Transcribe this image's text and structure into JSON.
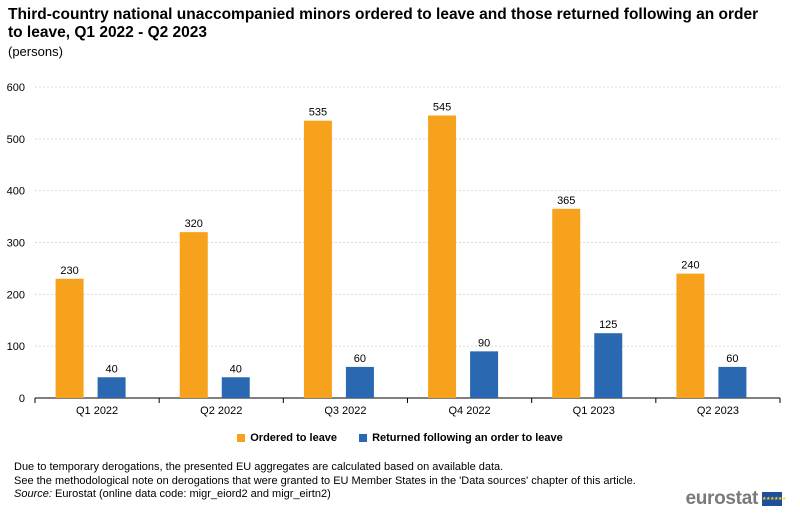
{
  "title": "Third-country national unaccompanied minors ordered to leave and those returned following an order to leave, Q1 2022 - Q2 2023",
  "subtitle": "(persons)",
  "chart_data": {
    "type": "bar",
    "categories": [
      "Q1 2022",
      "Q2 2022",
      "Q3 2022",
      "Q4 2022",
      "Q1 2023",
      "Q2 2023"
    ],
    "series": [
      {
        "name": "Ordered to leave",
        "color": "#f6a21c",
        "values": [
          230,
          320,
          535,
          545,
          365,
          240
        ]
      },
      {
        "name": "Returned following an order to leave",
        "color": "#2a68b1",
        "values": [
          40,
          40,
          60,
          90,
          125,
          60
        ]
      }
    ],
    "ylim": [
      0,
      600
    ],
    "yticks": [
      0,
      100,
      200,
      300,
      400,
      500,
      600
    ],
    "xlabel": "",
    "ylabel": "",
    "grid": true,
    "legend_position": "bottom"
  },
  "notes": {
    "line1": "Due to temporary derogations, the presented EU aggregates are calculated based on available data.",
    "line2": "See the methodological note on derogations that were granted to EU Member States in the 'Data sources' chapter of this article.",
    "source_label": "Source:",
    "source_text": " Eurostat (online data code: migr_eiord2 and migr_eirtn2)"
  },
  "logo": {
    "text": "eurostat",
    "flag_stars": "★★★★★★"
  }
}
